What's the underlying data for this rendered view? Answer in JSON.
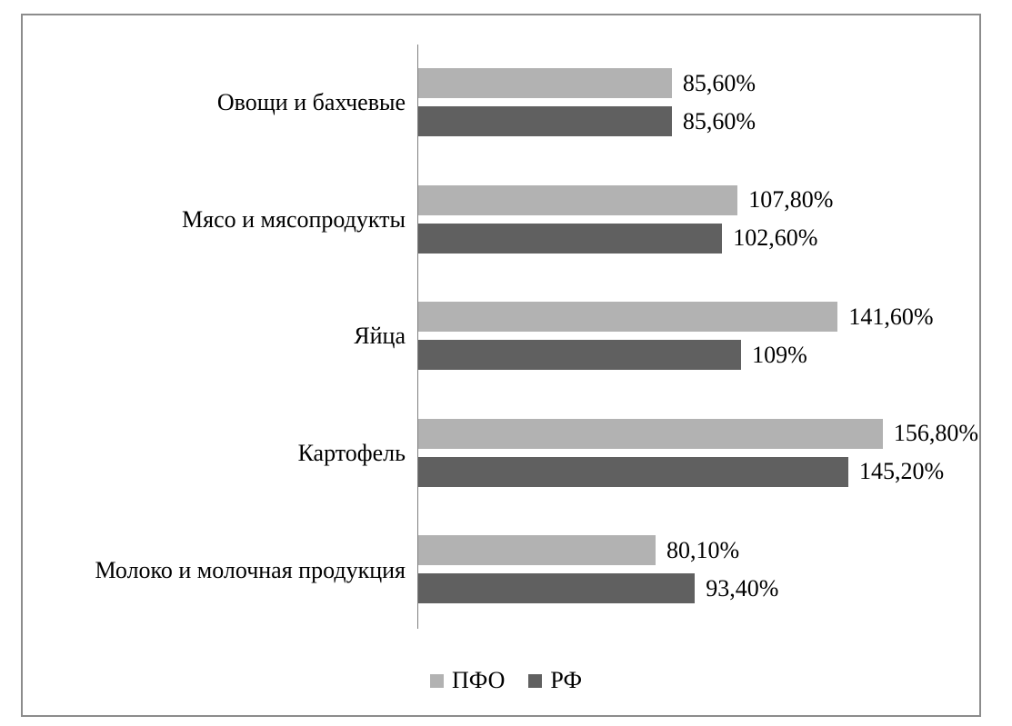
{
  "chart_data": {
    "type": "bar",
    "orientation": "horizontal",
    "title": "",
    "categories": [
      "Овощи и бахчевые",
      "Мясо и мясопродукты",
      "Яйца",
      "Картофель",
      "Молоко и молочная продукция"
    ],
    "series": [
      {
        "name": "ПФО",
        "color": "#b2b2b2",
        "values": [
          85.6,
          107.8,
          141.6,
          156.8,
          80.1
        ],
        "labels": [
          "85,60%",
          "107,80%",
          "141,60%",
          "156,80%",
          "80,10%"
        ]
      },
      {
        "name": "РФ",
        "color": "#606060",
        "values": [
          85.6,
          102.6,
          109,
          145.2,
          93.4
        ],
        "labels": [
          "85,60%",
          "102,60%",
          "109%",
          "145,20%",
          "93,40%"
        ]
      }
    ],
    "axis_max": 190,
    "unit": "%",
    "value_labels_visible": true,
    "grid": false,
    "legend_position": "bottom",
    "colors": {
      "frame_border": "#8c8c8c",
      "axis_line": "#808080",
      "text": "#000000",
      "background": "#ffffff"
    }
  }
}
